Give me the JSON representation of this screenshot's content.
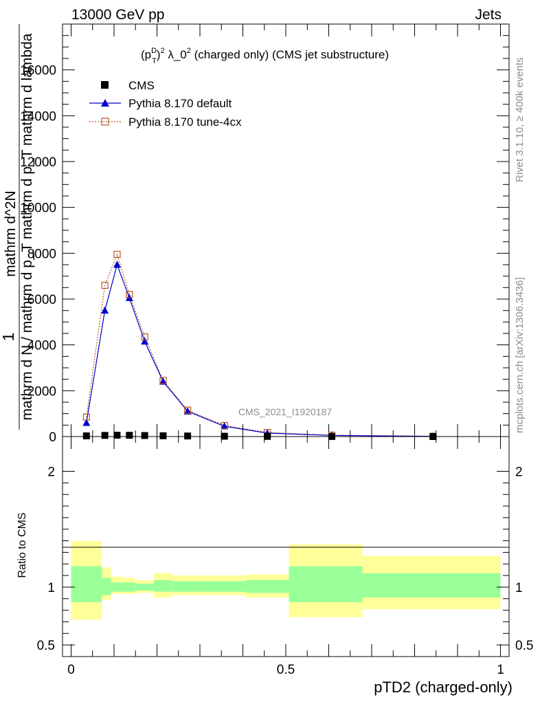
{
  "header": {
    "left": "13000 GeV pp",
    "right": "Jets"
  },
  "side_text": {
    "rivet": "Rivet 3.1.10, ≥ 400k events",
    "mcplots": "mcplots.cern.ch [arXiv:1306.3436]"
  },
  "chart_data": {
    "type": "line",
    "title": "(p_T^D)^2 λ_0^2 (charged only) (CMS jet substructure)",
    "title_parts": {
      "a": "(p",
      "sup1": "D",
      "sub1": "T",
      "b": ")",
      "sup2": "2",
      "c": " λ_0",
      "sup3": "2",
      "d": " (charged only) (CMS jet substructure)"
    },
    "watermark": "CMS_2021_I1920187",
    "xlabel": "pTD2 (charged-only)",
    "ylabel_main_numerator": "mathrm d^2N",
    "ylabel_main_line1": "1",
    "ylabel_main_denominator": "mathrm d N / mathrm d p_T mathrm d p_T mathrm d lambda",
    "ylabel_ratio": "Ratio to CMS",
    "xlim": [
      -0.02,
      1.02
    ],
    "ylim_main": [
      0,
      18000
    ],
    "ylim_ratio": [
      0.4,
      2.3
    ],
    "x_tick_labels": [
      "0",
      "0.5",
      "1"
    ],
    "y_tick_labels_main": [
      "0",
      "2000",
      "4000",
      "6000",
      "8000",
      "10000",
      "12000",
      "14000",
      "16000"
    ],
    "y_tick_labels_ratio": [
      "0.5",
      "1",
      "2"
    ],
    "legend_position": "top-left",
    "x": [
      0.0357,
      0.0786,
      0.1071,
      0.1357,
      0.1714,
      0.2143,
      0.2714,
      0.3571,
      0.4571,
      0.6071,
      0.8429
    ],
    "series": [
      {
        "name": "CMS",
        "values": [
          30,
          50,
          60,
          55,
          45,
          35,
          25,
          15,
          8,
          3,
          1
        ],
        "color": "#000000",
        "marker": "square"
      },
      {
        "name": "Pythia 8.170 default",
        "values": [
          600,
          5500,
          7500,
          6050,
          4150,
          2400,
          1100,
          450,
          150,
          50,
          10
        ],
        "color": "#0000cc",
        "marker": "triangle"
      },
      {
        "name": "Pythia 8.170 tune-4cx",
        "values": [
          850,
          6600,
          7950,
          6200,
          4350,
          2450,
          1150,
          480,
          180,
          60,
          12
        ],
        "color": "#b4562a",
        "marker": "open-square"
      }
    ],
    "ratio_bands": [
      {
        "xlo": 0.0,
        "xhi": 0.0714,
        "inner": [
          0.87,
          1.18
        ],
        "outer": [
          0.72,
          1.4
        ]
      },
      {
        "xlo": 0.0714,
        "xhi": 0.0929,
        "inner": [
          0.93,
          1.08
        ],
        "outer": [
          0.89,
          1.17
        ]
      },
      {
        "xlo": 0.0929,
        "xhi": 0.1214,
        "inner": [
          0.96,
          1.04
        ],
        "outer": [
          0.94,
          1.09
        ]
      },
      {
        "xlo": 0.1214,
        "xhi": 0.15,
        "inner": [
          0.96,
          1.04
        ],
        "outer": [
          0.94,
          1.08
        ]
      },
      {
        "xlo": 0.15,
        "xhi": 0.1929,
        "inner": [
          0.97,
          1.03
        ],
        "outer": [
          0.95,
          1.06
        ]
      },
      {
        "xlo": 0.1929,
        "xhi": 0.2357,
        "inner": [
          0.96,
          1.06
        ],
        "outer": [
          0.91,
          1.12
        ]
      },
      {
        "xlo": 0.2357,
        "xhi": 0.3071,
        "inner": [
          0.96,
          1.05
        ],
        "outer": [
          0.93,
          1.1
        ]
      },
      {
        "xlo": 0.3071,
        "xhi": 0.4071,
        "inner": [
          0.96,
          1.05
        ],
        "outer": [
          0.93,
          1.1
        ]
      },
      {
        "xlo": 0.4071,
        "xhi": 0.5071,
        "inner": [
          0.95,
          1.06
        ],
        "outer": [
          0.91,
          1.11
        ]
      },
      {
        "xlo": 0.5071,
        "xhi": 0.6786,
        "inner": [
          0.87,
          1.18
        ],
        "outer": [
          0.74,
          1.37
        ]
      },
      {
        "xlo": 0.6786,
        "xhi": 1.0,
        "inner": [
          0.91,
          1.12
        ],
        "outer": [
          0.81,
          1.27
        ]
      }
    ],
    "band_colors": {
      "inner": "#99ff99",
      "outer": "#ffff99"
    }
  }
}
